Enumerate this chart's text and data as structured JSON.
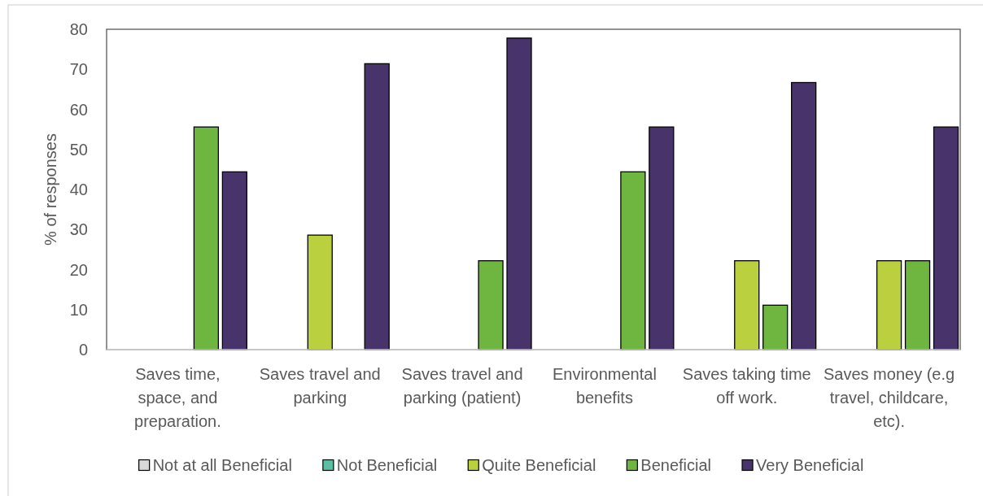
{
  "chart_data": {
    "type": "bar",
    "ylabel": "% of responses",
    "categories": [
      "Saves time, space, and preparation.",
      "Saves travel and parking",
      "Saves travel and parking (patient)",
      "Environmental benefits",
      "Saves taking time off work.",
      "Saves money (e.g travel, childcare, etc)."
    ],
    "series": [
      {
        "name": "Not at all Beneficial",
        "color": "#d9d9d9",
        "values": [
          0,
          0,
          0,
          0,
          0,
          0
        ]
      },
      {
        "name": "Not Beneficial",
        "color": "#5bbfa3",
        "values": [
          0,
          0,
          0,
          0,
          0,
          0
        ]
      },
      {
        "name": "Quite Beneficial",
        "color": "#bbd03e",
        "values": [
          0,
          28.6,
          0,
          0,
          22.2,
          22.2
        ]
      },
      {
        "name": "Beneficial",
        "color": "#6fb641",
        "values": [
          55.6,
          0,
          22.2,
          44.4,
          11.1,
          22.2
        ]
      },
      {
        "name": "Very Beneficial",
        "color": "#48336a",
        "values": [
          44.4,
          71.4,
          77.8,
          55.6,
          66.7,
          55.6
        ]
      }
    ],
    "ylim": [
      0,
      80
    ],
    "yticks": [
      0,
      10,
      20,
      30,
      40,
      50,
      60,
      70,
      80
    ],
    "legend": "bottom"
  }
}
